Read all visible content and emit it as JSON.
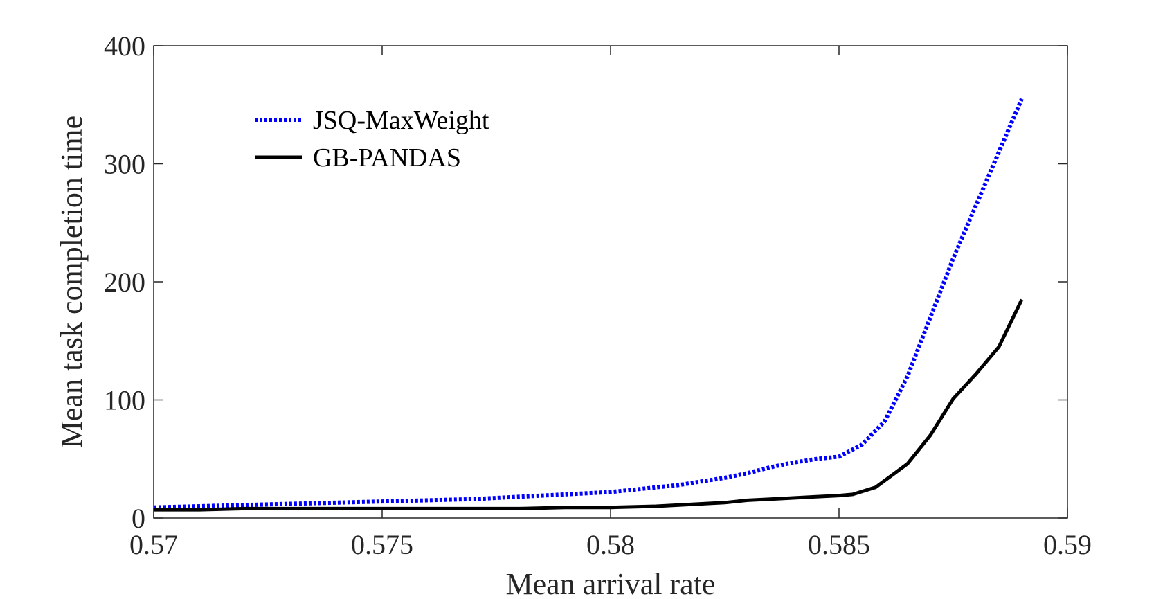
{
  "chart_data": {
    "type": "line",
    "title": "",
    "xlabel": "Mean arrival rate",
    "ylabel": "Mean task completion time",
    "xlim": [
      0.57,
      0.59
    ],
    "ylim": [
      0,
      400
    ],
    "xticks": [
      0.57,
      0.575,
      0.58,
      0.585,
      0.59
    ],
    "xtick_labels": [
      "0.57",
      "0.575",
      "0.58",
      "0.585",
      "0.59"
    ],
    "yticks": [
      0,
      100,
      200,
      300,
      400
    ],
    "ytick_labels": [
      "0",
      "100",
      "200",
      "300",
      "400"
    ],
    "grid": false,
    "legend": {
      "location": "top-left"
    },
    "series": [
      {
        "name": "JSQ-MaxWeight",
        "color": "#0000ff",
        "style": "dotted",
        "x": [
          0.57,
          0.571,
          0.572,
          0.573,
          0.574,
          0.575,
          0.576,
          0.577,
          0.578,
          0.579,
          0.58,
          0.5805,
          0.581,
          0.5815,
          0.582,
          0.5825,
          0.583,
          0.5835,
          0.584,
          0.5845,
          0.585,
          0.5855,
          0.586,
          0.5865,
          0.587,
          0.5875,
          0.588,
          0.5885,
          0.589
        ],
        "values": [
          9,
          10,
          11,
          12,
          13,
          14,
          15,
          16,
          18,
          20,
          22,
          24,
          26,
          28,
          31,
          34,
          38,
          43,
          47,
          50,
          52,
          62,
          82,
          120,
          170,
          220,
          265,
          310,
          355
        ]
      },
      {
        "name": "GB-PANDAS",
        "color": "#000000",
        "style": "solid",
        "x": [
          0.57,
          0.571,
          0.572,
          0.573,
          0.574,
          0.575,
          0.576,
          0.577,
          0.578,
          0.579,
          0.58,
          0.581,
          0.5815,
          0.582,
          0.5825,
          0.583,
          0.5835,
          0.584,
          0.5845,
          0.585,
          0.5853,
          0.5858,
          0.5865,
          0.587,
          0.5875,
          0.588,
          0.5885,
          0.589
        ],
        "values": [
          7,
          7,
          8,
          8,
          8,
          8,
          8,
          8,
          8,
          9,
          9,
          10,
          11,
          12,
          13,
          15,
          16,
          17,
          18,
          19,
          20,
          26,
          46,
          70,
          101,
          122,
          145,
          185
        ]
      }
    ]
  }
}
